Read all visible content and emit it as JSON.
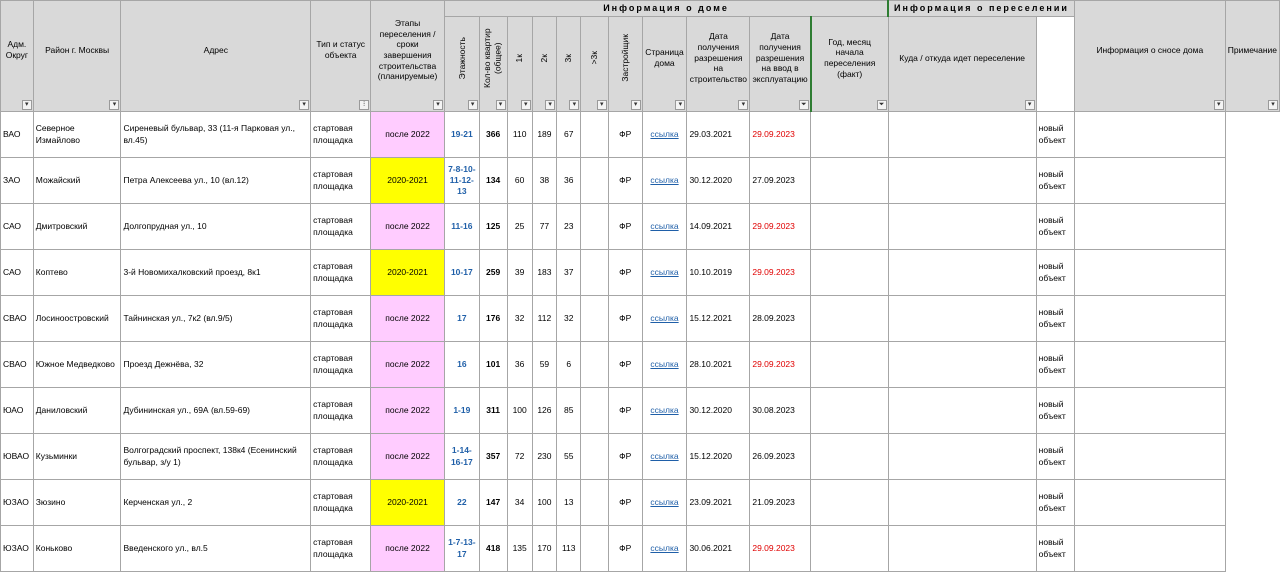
{
  "sections": {
    "house_info": "Информация о доме",
    "resettlement_info": "Информация о переселении"
  },
  "headers": {
    "okrug": "Адм. Округ",
    "district": "Район г. Москвы",
    "address": "Адрес",
    "type": "Тип и статус объекта",
    "phases": "Этапы переселения / сроки завершения строительства (планируемые)",
    "floors": "Этажность",
    "apartments": "Кол-во квартир (общее)",
    "k1": "1к",
    "k2": "2к",
    "k3": "3к",
    "k3plus": ">3к",
    "developer": "Застройщик",
    "page": "Страница дома",
    "permit_build": "Дата получения разрешения на строительство",
    "permit_use": "Дата получения разрешения на ввод в эксплуатацию",
    "start": "Год, месяц начала переселения (факт)",
    "where": "Куда / откуда идет переселение",
    "demolition": "Информация о сносе дома",
    "note": "Примечание"
  },
  "filter_icons": {
    "plain": "dropdown-arrow-icon",
    "filtered": "funnel-icon",
    "sorted": "sort-icon"
  },
  "colors": {
    "pink": "#ffccff",
    "yellow": "#ffff00",
    "red_date": "#e00000",
    "link": "#1f5fa8",
    "header_bg": "#d9d9d9"
  },
  "rows": [
    {
      "okrug": "ВАО",
      "district": "Северное Измайлово",
      "address": "Сиреневый бульвар, 33 (11-я Парковая ул., вл.45)",
      "type": "стартовая площадка",
      "phase": "после 2022",
      "phase_color": "pink",
      "floors": "19-21",
      "apts": "366",
      "k1": "110",
      "k2": "189",
      "k3": "67",
      "k3plus": "",
      "dev": "ФР",
      "link": "ссылка",
      "pb": "29.03.2021",
      "pu": "29.09.2023",
      "pu_red": true,
      "demo": "новый объект"
    },
    {
      "okrug": "ЗАО",
      "district": "Можайский",
      "address": "Петра Алексеева ул., 10 (вл.12)",
      "type": "стартовая площадка",
      "phase": "2020-2021",
      "phase_color": "yellow",
      "floors": "7-8-10-11-12-13",
      "apts": "134",
      "k1": "60",
      "k2": "38",
      "k3": "36",
      "k3plus": "",
      "dev": "ФР",
      "link": "ссылка",
      "pb": "30.12.2020",
      "pu": "27.09.2023",
      "pu_red": false,
      "demo": "новый объект"
    },
    {
      "okrug": "САО",
      "district": "Дмитровский",
      "address": "Долгопрудная ул., 10",
      "type": "стартовая площадка",
      "phase": "после 2022",
      "phase_color": "pink",
      "floors": "11-16",
      "apts": "125",
      "k1": "25",
      "k2": "77",
      "k3": "23",
      "k3plus": "",
      "dev": "ФР",
      "link": "ссылка",
      "pb": "14.09.2021",
      "pu": "29.09.2023",
      "pu_red": true,
      "demo": "новый объект"
    },
    {
      "okrug": "САО",
      "district": "Коптево",
      "address": "3-й Новомихалковский проезд, 8к1",
      "type": "стартовая площадка",
      "phase": "2020-2021",
      "phase_color": "yellow",
      "floors": "10-17",
      "apts": "259",
      "k1": "39",
      "k2": "183",
      "k3": "37",
      "k3plus": "",
      "dev": "ФР",
      "link": "ссылка",
      "pb": "10.10.2019",
      "pu": "29.09.2023",
      "pu_red": true,
      "demo": "новый объект"
    },
    {
      "okrug": "СВАО",
      "district": "Лосиноостровский",
      "address": "Тайнинская ул., 7к2 (вл.9/5)",
      "type": "стартовая площадка",
      "phase": "после 2022",
      "phase_color": "pink",
      "floors": "17",
      "apts": "176",
      "k1": "32",
      "k2": "112",
      "k3": "32",
      "k3plus": "",
      "dev": "ФР",
      "link": "ссылка",
      "pb": "15.12.2021",
      "pu": "28.09.2023",
      "pu_red": false,
      "demo": "новый объект"
    },
    {
      "okrug": "СВАО",
      "district": "Южное Медведково",
      "address": "Проезд Дежнёва, 32",
      "type": "стартовая площадка",
      "phase": "после 2022",
      "phase_color": "pink",
      "floors": "16",
      "apts": "101",
      "k1": "36",
      "k2": "59",
      "k3": "6",
      "k3plus": "",
      "dev": "ФР",
      "link": "ссылка",
      "pb": "28.10.2021",
      "pu": "29.09.2023",
      "pu_red": true,
      "demo": "новый объект"
    },
    {
      "okrug": "ЮАО",
      "district": "Даниловский",
      "address": "Дубининская ул., 69А (вл.59-69)",
      "type": "стартовая площадка",
      "phase": "после 2022",
      "phase_color": "pink",
      "floors": "1-19",
      "apts": "311",
      "k1": "100",
      "k2": "126",
      "k3": "85",
      "k3plus": "",
      "dev": "ФР",
      "link": "ссылка",
      "pb": "30.12.2020",
      "pu": "30.08.2023",
      "pu_red": false,
      "demo": "новый объект"
    },
    {
      "okrug": "ЮВАО",
      "district": "Кузьминки",
      "address": "Волгоградский проспект, 138к4 (Есенинский бульвар, з/у 1)",
      "type": "стартовая площадка",
      "phase": "после 2022",
      "phase_color": "pink",
      "floors": "1-14-16-17",
      "apts": "357",
      "k1": "72",
      "k2": "230",
      "k3": "55",
      "k3plus": "",
      "dev": "ФР",
      "link": "ссылка",
      "pb": "15.12.2020",
      "pu": "26.09.2023",
      "pu_red": false,
      "demo": "новый объект"
    },
    {
      "okrug": "ЮЗАО",
      "district": "Зюзино",
      "address": "Керченская ул., 2",
      "type": "стартовая площадка",
      "phase": "2020-2021",
      "phase_color": "yellow",
      "floors": "22",
      "apts": "147",
      "k1": "34",
      "k2": "100",
      "k3": "13",
      "k3plus": "",
      "dev": "ФР",
      "link": "ссылка",
      "pb": "23.09.2021",
      "pu": "21.09.2023",
      "pu_red": false,
      "demo": "новый объект"
    },
    {
      "okrug": "ЮЗАО",
      "district": "Коньково",
      "address": "Введенского ул., вл.5",
      "type": "стартовая площадка",
      "phase": "после 2022",
      "phase_color": "pink",
      "floors": "1-7-13-17",
      "apts": "418",
      "k1": "135",
      "k2": "170",
      "k3": "113",
      "k3plus": "",
      "dev": "ФР",
      "link": "ссылка",
      "pb": "30.06.2021",
      "pu": "29.09.2023",
      "pu_red": true,
      "demo": "новый объект"
    }
  ]
}
